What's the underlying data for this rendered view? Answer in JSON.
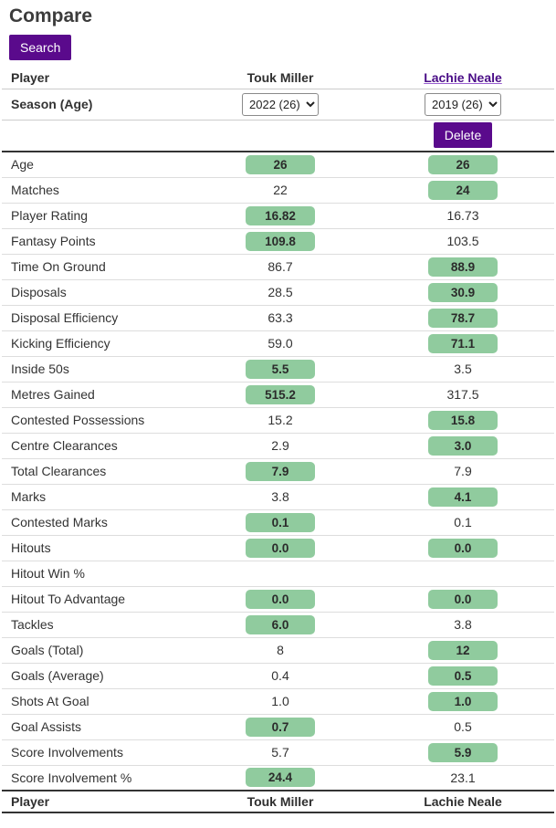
{
  "page": {
    "title": "Compare"
  },
  "toolbar": {
    "search_label": "Search"
  },
  "colors": {
    "accent_purple": "#5a0a8c",
    "link_purple": "#4a0d87",
    "highlight_green": "#90cb9e"
  },
  "table": {
    "header": {
      "col1": "Player",
      "col2": "Touk Miller",
      "col3": "Lachie Neale"
    },
    "season_row": {
      "label": "Season (Age)",
      "player1_selected": "2022 (26)",
      "player2_selected": "2019 (26)"
    },
    "delete_label": "Delete",
    "rows": [
      {
        "label": "Age",
        "p1": {
          "value": "26",
          "highlight": true
        },
        "p2": {
          "value": "26",
          "highlight": true
        }
      },
      {
        "label": "Matches",
        "p1": {
          "value": "22",
          "highlight": false
        },
        "p2": {
          "value": "24",
          "highlight": true
        }
      },
      {
        "label": "Player Rating",
        "p1": {
          "value": "16.82",
          "highlight": true
        },
        "p2": {
          "value": "16.73",
          "highlight": false
        }
      },
      {
        "label": "Fantasy Points",
        "p1": {
          "value": "109.8",
          "highlight": true
        },
        "p2": {
          "value": "103.5",
          "highlight": false
        }
      },
      {
        "label": "Time On Ground",
        "p1": {
          "value": "86.7",
          "highlight": false
        },
        "p2": {
          "value": "88.9",
          "highlight": true
        }
      },
      {
        "label": "Disposals",
        "p1": {
          "value": "28.5",
          "highlight": false
        },
        "p2": {
          "value": "30.9",
          "highlight": true
        }
      },
      {
        "label": "Disposal Efficiency",
        "p1": {
          "value": "63.3",
          "highlight": false
        },
        "p2": {
          "value": "78.7",
          "highlight": true
        }
      },
      {
        "label": "Kicking Efficiency",
        "p1": {
          "value": "59.0",
          "highlight": false
        },
        "p2": {
          "value": "71.1",
          "highlight": true
        }
      },
      {
        "label": "Inside 50s",
        "p1": {
          "value": "5.5",
          "highlight": true
        },
        "p2": {
          "value": "3.5",
          "highlight": false
        }
      },
      {
        "label": "Metres Gained",
        "p1": {
          "value": "515.2",
          "highlight": true
        },
        "p2": {
          "value": "317.5",
          "highlight": false
        }
      },
      {
        "label": "Contested Possessions",
        "p1": {
          "value": "15.2",
          "highlight": false
        },
        "p2": {
          "value": "15.8",
          "highlight": true
        }
      },
      {
        "label": "Centre Clearances",
        "p1": {
          "value": "2.9",
          "highlight": false
        },
        "p2": {
          "value": "3.0",
          "highlight": true
        }
      },
      {
        "label": "Total Clearances",
        "p1": {
          "value": "7.9",
          "highlight": true
        },
        "p2": {
          "value": "7.9",
          "highlight": false
        }
      },
      {
        "label": "Marks",
        "p1": {
          "value": "3.8",
          "highlight": false
        },
        "p2": {
          "value": "4.1",
          "highlight": true
        }
      },
      {
        "label": "Contested Marks",
        "p1": {
          "value": "0.1",
          "highlight": true
        },
        "p2": {
          "value": "0.1",
          "highlight": false
        }
      },
      {
        "label": "Hitouts",
        "p1": {
          "value": "0.0",
          "highlight": true
        },
        "p2": {
          "value": "0.0",
          "highlight": true
        }
      },
      {
        "label": "Hitout Win %",
        "p1": {
          "value": "",
          "highlight": false
        },
        "p2": {
          "value": "",
          "highlight": false
        }
      },
      {
        "label": "Hitout To Advantage",
        "p1": {
          "value": "0.0",
          "highlight": true
        },
        "p2": {
          "value": "0.0",
          "highlight": true
        }
      },
      {
        "label": "Tackles",
        "p1": {
          "value": "6.0",
          "highlight": true
        },
        "p2": {
          "value": "3.8",
          "highlight": false
        }
      },
      {
        "label": "Goals (Total)",
        "p1": {
          "value": "8",
          "highlight": false
        },
        "p2": {
          "value": "12",
          "highlight": true
        }
      },
      {
        "label": "Goals (Average)",
        "p1": {
          "value": "0.4",
          "highlight": false
        },
        "p2": {
          "value": "0.5",
          "highlight": true
        }
      },
      {
        "label": "Shots At Goal",
        "p1": {
          "value": "1.0",
          "highlight": false
        },
        "p2": {
          "value": "1.0",
          "highlight": true
        }
      },
      {
        "label": "Goal Assists",
        "p1": {
          "value": "0.7",
          "highlight": true
        },
        "p2": {
          "value": "0.5",
          "highlight": false
        }
      },
      {
        "label": "Score Involvements",
        "p1": {
          "value": "5.7",
          "highlight": false
        },
        "p2": {
          "value": "5.9",
          "highlight": true
        }
      },
      {
        "label": "Score Involvement %",
        "p1": {
          "value": "24.4",
          "highlight": true
        },
        "p2": {
          "value": "23.1",
          "highlight": false
        }
      }
    ],
    "footer": {
      "col1": "Player",
      "col2": "Touk Miller",
      "col3": "Lachie Neale"
    }
  }
}
